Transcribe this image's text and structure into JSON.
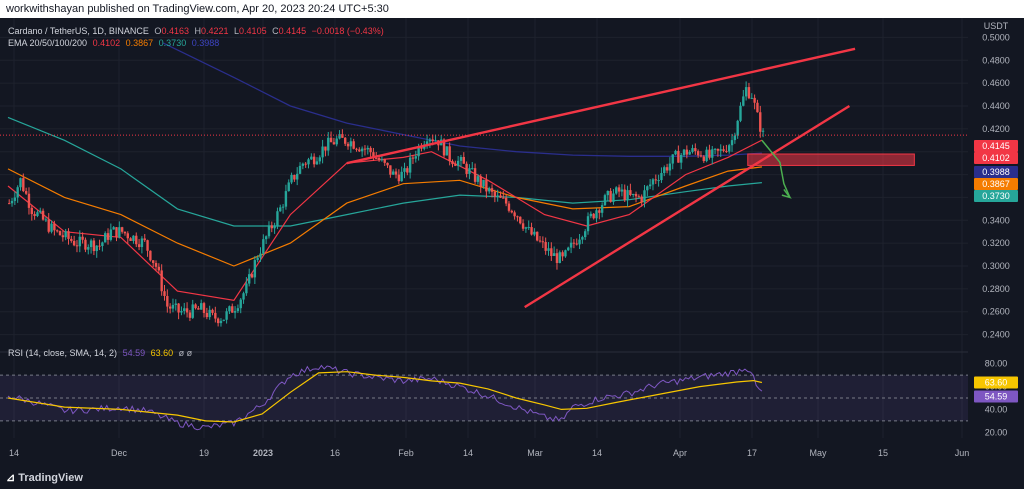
{
  "header": {
    "publisher_line": "workwithshayan published on TradingView.com, Apr 20, 2023 20:24 UTC+5:30"
  },
  "legend": {
    "symbol": "Cardano / TetherUS, 1D, BINANCE",
    "o_label": "O",
    "o": "0.4163",
    "h_label": "H",
    "h": "0.4221",
    "l_label": "L",
    "l": "0.4105",
    "c_label": "C",
    "c": "0.4145",
    "change": "−0.0018 (−0.43%)",
    "ema_label": "EMA 20/50/100/200",
    "ema20": "0.4102",
    "ema50": "0.3867",
    "ema100": "0.3730",
    "ema200": "0.3988",
    "rsi_label": "RSI (14, close, SMA, 14, 2)",
    "rsi_value": "54.59",
    "rsi_sma": "63.60",
    "rsi_tail": "ø ø"
  },
  "axis": {
    "currency": "USDT",
    "price_ticks": [
      "0.5000",
      "0.4800",
      "0.4600",
      "0.4400",
      "0.4200",
      "0.4000",
      "0.3800",
      "0.3600",
      "0.3400",
      "0.3200",
      "0.3000",
      "0.2800",
      "0.2600",
      "0.2400"
    ],
    "rsi_ticks": [
      "80.00",
      "60.00",
      "40.00",
      "20.00"
    ],
    "time_ticks": [
      "14",
      "Dec",
      "19",
      "2023",
      "16",
      "Feb",
      "14",
      "Mar",
      "14",
      "Apr",
      "17",
      "May",
      "15",
      "Jun"
    ]
  },
  "price_badges": [
    {
      "label": "0.4145",
      "color": "#f23645"
    },
    {
      "label": "0.4102",
      "color": "#f23645"
    },
    {
      "label": "0.3988",
      "color": "#2a2e8c"
    },
    {
      "label": "0.3867",
      "color": "#f57c00"
    },
    {
      "label": "0.3730",
      "color": "#26a69a"
    }
  ],
  "rsi_badges": [
    {
      "label": "63.60",
      "color": "#f7c600"
    },
    {
      "label": "54.59",
      "color": "#7e57c2"
    }
  ],
  "colors": {
    "up": "#26a69a",
    "down": "#ef5350",
    "ema20": "#f23645",
    "ema50": "#f57c00",
    "ema100": "#26a69a",
    "ema200": "#2a2e8c",
    "trendline": "#f23645",
    "rsi": "#7e57c2",
    "rsi_sma": "#f7c600"
  },
  "footer": {
    "brand": "TradingView"
  },
  "chart_data": {
    "type": "candlestick",
    "ylim": [
      0.23,
      0.51
    ],
    "rsi_ylim": [
      15,
      85
    ],
    "price_anchors": [
      [
        0,
        0.355
      ],
      [
        4,
        0.375
      ],
      [
        8,
        0.35
      ],
      [
        12,
        0.34
      ],
      [
        16,
        0.33
      ],
      [
        20,
        0.325
      ],
      [
        24,
        0.32
      ],
      [
        28,
        0.32
      ],
      [
        32,
        0.318
      ],
      [
        36,
        0.33
      ],
      [
        40,
        0.33
      ],
      [
        44,
        0.325
      ],
      [
        48,
        0.32
      ],
      [
        52,
        0.3
      ],
      [
        56,
        0.265
      ],
      [
        60,
        0.26
      ],
      [
        64,
        0.26
      ],
      [
        68,
        0.262
      ],
      [
        72,
        0.255
      ],
      [
        76,
        0.255
      ],
      [
        80,
        0.265
      ],
      [
        84,
        0.28
      ],
      [
        88,
        0.31
      ],
      [
        92,
        0.33
      ],
      [
        96,
        0.35
      ],
      [
        100,
        0.375
      ],
      [
        104,
        0.39
      ],
      [
        108,
        0.395
      ],
      [
        112,
        0.405
      ],
      [
        116,
        0.41
      ],
      [
        120,
        0.41
      ],
      [
        124,
        0.405
      ],
      [
        128,
        0.4
      ],
      [
        132,
        0.39
      ],
      [
        136,
        0.38
      ],
      [
        140,
        0.38
      ],
      [
        144,
        0.4
      ],
      [
        148,
        0.415
      ],
      [
        152,
        0.41
      ],
      [
        156,
        0.395
      ],
      [
        160,
        0.39
      ],
      [
        164,
        0.38
      ],
      [
        168,
        0.37
      ],
      [
        172,
        0.36
      ],
      [
        176,
        0.355
      ],
      [
        180,
        0.345
      ],
      [
        184,
        0.33
      ],
      [
        188,
        0.32
      ],
      [
        192,
        0.31
      ],
      [
        196,
        0.305
      ],
      [
        200,
        0.32
      ],
      [
        204,
        0.335
      ],
      [
        208,
        0.35
      ],
      [
        212,
        0.36
      ],
      [
        216,
        0.365
      ],
      [
        220,
        0.36
      ],
      [
        224,
        0.36
      ],
      [
        228,
        0.375
      ],
      [
        232,
        0.385
      ],
      [
        236,
        0.395
      ],
      [
        240,
        0.4
      ],
      [
        244,
        0.4
      ],
      [
        248,
        0.395
      ],
      [
        252,
        0.4
      ],
      [
        256,
        0.41
      ],
      [
        258,
        0.43
      ],
      [
        261,
        0.455
      ],
      [
        263,
        0.45
      ],
      [
        265,
        0.43
      ],
      [
        267,
        0.4145
      ]
    ],
    "ema20": [
      [
        0,
        0.37
      ],
      [
        20,
        0.33
      ],
      [
        40,
        0.325
      ],
      [
        60,
        0.278
      ],
      [
        80,
        0.27
      ],
      [
        100,
        0.345
      ],
      [
        120,
        0.39
      ],
      [
        140,
        0.395
      ],
      [
        150,
        0.4
      ],
      [
        170,
        0.375
      ],
      [
        190,
        0.345
      ],
      [
        205,
        0.335
      ],
      [
        220,
        0.345
      ],
      [
        240,
        0.38
      ],
      [
        255,
        0.395
      ],
      [
        267,
        0.4102
      ]
    ],
    "ema50": [
      [
        0,
        0.385
      ],
      [
        20,
        0.36
      ],
      [
        40,
        0.345
      ],
      [
        60,
        0.32
      ],
      [
        80,
        0.3
      ],
      [
        100,
        0.32
      ],
      [
        120,
        0.355
      ],
      [
        140,
        0.372
      ],
      [
        160,
        0.375
      ],
      [
        180,
        0.36
      ],
      [
        200,
        0.35
      ],
      [
        220,
        0.352
      ],
      [
        240,
        0.37
      ],
      [
        255,
        0.383
      ],
      [
        267,
        0.3867
      ]
    ],
    "ema100": [
      [
        0,
        0.43
      ],
      [
        20,
        0.41
      ],
      [
        40,
        0.385
      ],
      [
        60,
        0.35
      ],
      [
        80,
        0.335
      ],
      [
        100,
        0.335
      ],
      [
        120,
        0.345
      ],
      [
        140,
        0.355
      ],
      [
        160,
        0.362
      ],
      [
        180,
        0.36
      ],
      [
        200,
        0.355
      ],
      [
        220,
        0.358
      ],
      [
        240,
        0.365
      ],
      [
        255,
        0.37
      ],
      [
        267,
        0.373
      ]
    ],
    "ema200": [
      [
        55,
        0.495
      ],
      [
        80,
        0.465
      ],
      [
        100,
        0.44
      ],
      [
        120,
        0.425
      ],
      [
        140,
        0.415
      ],
      [
        160,
        0.405
      ],
      [
        180,
        0.4
      ],
      [
        200,
        0.397
      ],
      [
        220,
        0.396
      ],
      [
        240,
        0.396
      ],
      [
        255,
        0.397
      ],
      [
        267,
        0.3988
      ]
    ],
    "trend_upper": [
      [
        120,
        0.39
      ],
      [
        300,
        0.49
      ]
    ],
    "trend_lower": [
      [
        183,
        0.264
      ],
      [
        298,
        0.44
      ]
    ],
    "resistance_zone": [
      [
        262,
        0.398
      ],
      [
        321,
        0.388
      ]
    ],
    "rsi": [
      [
        0,
        52
      ],
      [
        10,
        46
      ],
      [
        20,
        39
      ],
      [
        30,
        40
      ],
      [
        40,
        42
      ],
      [
        50,
        38
      ],
      [
        60,
        28
      ],
      [
        70,
        24
      ],
      [
        80,
        28
      ],
      [
        90,
        44
      ],
      [
        100,
        70
      ],
      [
        110,
        78
      ],
      [
        120,
        72
      ],
      [
        130,
        68
      ],
      [
        140,
        65
      ],
      [
        150,
        67
      ],
      [
        160,
        60
      ],
      [
        170,
        52
      ],
      [
        180,
        42
      ],
      [
        190,
        33
      ],
      [
        196,
        30
      ],
      [
        200,
        42
      ],
      [
        210,
        50
      ],
      [
        220,
        54
      ],
      [
        230,
        62
      ],
      [
        240,
        66
      ],
      [
        250,
        70
      ],
      [
        258,
        73
      ],
      [
        261,
        77
      ],
      [
        263,
        74
      ],
      [
        265,
        60
      ],
      [
        267,
        54.59
      ]
    ],
    "rsi_sma": [
      [
        0,
        50
      ],
      [
        20,
        42
      ],
      [
        40,
        40
      ],
      [
        60,
        35
      ],
      [
        70,
        30
      ],
      [
        80,
        29
      ],
      [
        90,
        36
      ],
      [
        100,
        55
      ],
      [
        110,
        72
      ],
      [
        120,
        73
      ],
      [
        130,
        70
      ],
      [
        140,
        68
      ],
      [
        150,
        65
      ],
      [
        160,
        63
      ],
      [
        170,
        58
      ],
      [
        180,
        50
      ],
      [
        190,
        44
      ],
      [
        196,
        40
      ],
      [
        205,
        41
      ],
      [
        215,
        46
      ],
      [
        230,
        53
      ],
      [
        245,
        60
      ],
      [
        258,
        64
      ],
      [
        264,
        65.2
      ],
      [
        267,
        63.6
      ]
    ]
  }
}
